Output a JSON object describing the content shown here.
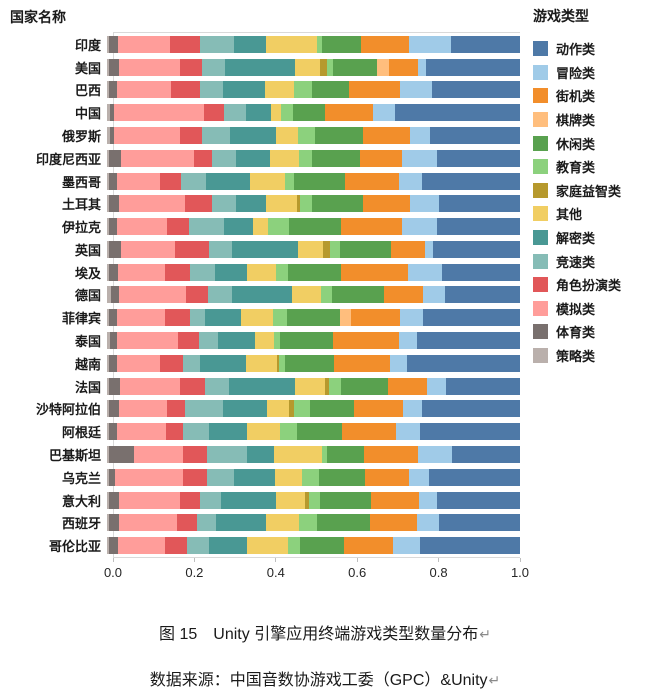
{
  "caption": {
    "figure": "图 15　Unity 引擎应用终端游戏类型数量分布",
    "source": "数据来源：中国音数协游戏工委（GPC）&Unity",
    "return_mark": "↵"
  },
  "chart_data": {
    "type": "bar",
    "orientation": "horizontal",
    "stacked": true,
    "normalized": true,
    "y_axis_header": "国家名称",
    "legend_title": "游戏类型",
    "legend_position": "right",
    "xlim": [
      0,
      1
    ],
    "x_ticks": [
      {
        "value": 0.0,
        "label": "0.0"
      },
      {
        "value": 0.2,
        "label": "0.2"
      },
      {
        "value": 0.4,
        "label": "0.4"
      },
      {
        "value": 0.6,
        "label": "0.6"
      },
      {
        "value": 0.8,
        "label": "0.8"
      },
      {
        "value": 1.0,
        "label": "1.0"
      }
    ],
    "legend": [
      {
        "label": "动作类",
        "color": "#4E79A7"
      },
      {
        "label": "冒险类",
        "color": "#A0CBE8"
      },
      {
        "label": "街机类",
        "color": "#F28E2B"
      },
      {
        "label": "棋牌类",
        "color": "#FFBE7D"
      },
      {
        "label": "休闲类",
        "color": "#59A14F"
      },
      {
        "label": "教育类",
        "color": "#8CD17D"
      },
      {
        "label": "家庭益智类",
        "color": "#B6992D"
      },
      {
        "label": "其他",
        "color": "#F1CE63"
      },
      {
        "label": "解密类",
        "color": "#499894"
      },
      {
        "label": "竞速类",
        "color": "#86BCB6"
      },
      {
        "label": "角色扮演类",
        "color": "#E15759"
      },
      {
        "label": "模拟类",
        "color": "#FF9D9A"
      },
      {
        "label": "体育类",
        "color": "#79706E"
      },
      {
        "label": "策略类",
        "color": "#BAB0AC"
      }
    ],
    "categories": [
      "印度",
      "美国",
      "巴西",
      "中国",
      "俄罗斯",
      "印度尼西亚",
      "墨西哥",
      "土耳其",
      "伊拉克",
      "英国",
      "埃及",
      "德国",
      "菲律宾",
      "泰国",
      "越南",
      "法国",
      "沙特阿拉伯",
      "阿根廷",
      "巴基斯坦",
      "乌克兰",
      "意大利",
      "西班牙",
      "哥伦比亚"
    ],
    "stack_note": "series listed in draw order, left to right (reverse of legend order); values are estimated proportions summing to 1.0 per country",
    "series": [
      {
        "name": "策略类",
        "color": "#BAB0AC",
        "values": [
          0.005,
          0.005,
          0.005,
          0.008,
          0.008,
          0.005,
          0.005,
          0.005,
          0.005,
          0.005,
          0.005,
          0.01,
          0.005,
          0.008,
          0.005,
          0.005,
          0.005,
          0.005,
          0.005,
          0.005,
          0.005,
          0.005,
          0.005
        ]
      },
      {
        "name": "体育类",
        "color": "#79706E",
        "values": [
          0.022,
          0.025,
          0.02,
          0.008,
          0.008,
          0.029,
          0.019,
          0.025,
          0.02,
          0.029,
          0.022,
          0.018,
          0.02,
          0.016,
          0.02,
          0.027,
          0.025,
          0.019,
          0.06,
          0.014,
          0.025,
          0.025,
          0.022
        ]
      },
      {
        "name": "模拟类",
        "color": "#FF9D9A",
        "values": [
          0.125,
          0.147,
          0.13,
          0.218,
          0.16,
          0.176,
          0.104,
          0.16,
          0.12,
          0.13,
          0.113,
          0.164,
          0.115,
          0.147,
          0.103,
          0.145,
          0.115,
          0.12,
          0.119,
          0.166,
          0.147,
          0.139,
          0.113
        ]
      },
      {
        "name": "角色扮演类",
        "color": "#E15759",
        "values": [
          0.073,
          0.053,
          0.07,
          0.049,
          0.053,
          0.045,
          0.052,
          0.065,
          0.053,
          0.082,
          0.061,
          0.053,
          0.061,
          0.053,
          0.057,
          0.061,
          0.045,
          0.041,
          0.057,
          0.057,
          0.049,
          0.049,
          0.053
        ]
      },
      {
        "name": "竞速类",
        "color": "#86BCB6",
        "values": [
          0.082,
          0.057,
          0.057,
          0.053,
          0.07,
          0.057,
          0.059,
          0.057,
          0.086,
          0.057,
          0.061,
          0.057,
          0.037,
          0.045,
          0.041,
          0.057,
          0.09,
          0.061,
          0.098,
          0.066,
          0.049,
          0.045,
          0.053
        ]
      },
      {
        "name": "解密类",
        "color": "#499894",
        "values": [
          0.078,
          0.168,
          0.1,
          0.061,
          0.111,
          0.082,
          0.107,
          0.074,
          0.07,
          0.16,
          0.078,
          0.147,
          0.086,
          0.09,
          0.111,
          0.16,
          0.107,
          0.094,
          0.066,
          0.098,
          0.135,
          0.123,
          0.094
        ]
      },
      {
        "name": "其他",
        "color": "#F1CE63",
        "values": [
          0.123,
          0.061,
          0.07,
          0.025,
          0.053,
          0.07,
          0.086,
          0.074,
          0.037,
          0.061,
          0.07,
          0.07,
          0.078,
          0.045,
          0.074,
          0.074,
          0.055,
          0.078,
          0.115,
          0.066,
          0.07,
          0.078,
          0.098
        ]
      },
      {
        "name": "家庭益智类",
        "color": "#B6992D",
        "values": [
          0,
          0.016,
          0,
          0,
          0,
          0,
          0,
          0.008,
          0,
          0.016,
          0,
          0,
          0,
          0,
          0.006,
          0.008,
          0.012,
          0,
          0,
          0,
          0.008,
          0,
          0
        ]
      },
      {
        "name": "教育类",
        "color": "#8CD17D",
        "values": [
          0.012,
          0.016,
          0.045,
          0.029,
          0.041,
          0.033,
          0.02,
          0.029,
          0.049,
          0.025,
          0.029,
          0.025,
          0.033,
          0.016,
          0.014,
          0.029,
          0.037,
          0.041,
          0.012,
          0.041,
          0.029,
          0.045,
          0.029
        ]
      },
      {
        "name": "休闲类",
        "color": "#59A14F",
        "values": [
          0.094,
          0.106,
          0.09,
          0.078,
          0.115,
          0.115,
          0.125,
          0.123,
          0.127,
          0.123,
          0.127,
          0.127,
          0.13,
          0.127,
          0.119,
          0.115,
          0.107,
          0.111,
          0.09,
          0.111,
          0.123,
          0.127,
          0.107
        ]
      },
      {
        "name": "棋牌类",
        "color": "#FFBE7D",
        "values": [
          0,
          0.029,
          0,
          0,
          0,
          0,
          0,
          0,
          0,
          0,
          0,
          0,
          0.025,
          0,
          0,
          0,
          0,
          0,
          0,
          0,
          0,
          0,
          0
        ]
      },
      {
        "name": "街机类",
        "color": "#F28E2B",
        "values": [
          0.118,
          0.07,
          0.123,
          0.115,
          0.115,
          0.102,
          0.13,
          0.115,
          0.147,
          0.082,
          0.164,
          0.094,
          0.119,
          0.16,
          0.135,
          0.094,
          0.119,
          0.131,
          0.131,
          0.107,
          0.115,
          0.115,
          0.119
        ]
      },
      {
        "name": "冒险类",
        "color": "#A0CBE8",
        "values": [
          0.102,
          0.02,
          0.078,
          0.053,
          0.049,
          0.086,
          0.057,
          0.07,
          0.086,
          0.02,
          0.082,
          0.053,
          0.057,
          0.045,
          0.041,
          0.045,
          0.045,
          0.057,
          0.082,
          0.049,
          0.045,
          0.053,
          0.066
        ]
      },
      {
        "name": "动作类",
        "color": "#4E79A7",
        "values": [
          0.166,
          0.227,
          0.212,
          0.303,
          0.217,
          0.2,
          0.236,
          0.195,
          0.2,
          0.21,
          0.188,
          0.182,
          0.234,
          0.248,
          0.274,
          0.18,
          0.238,
          0.242,
          0.165,
          0.22,
          0.2,
          0.196,
          0.241
        ]
      }
    ]
  }
}
